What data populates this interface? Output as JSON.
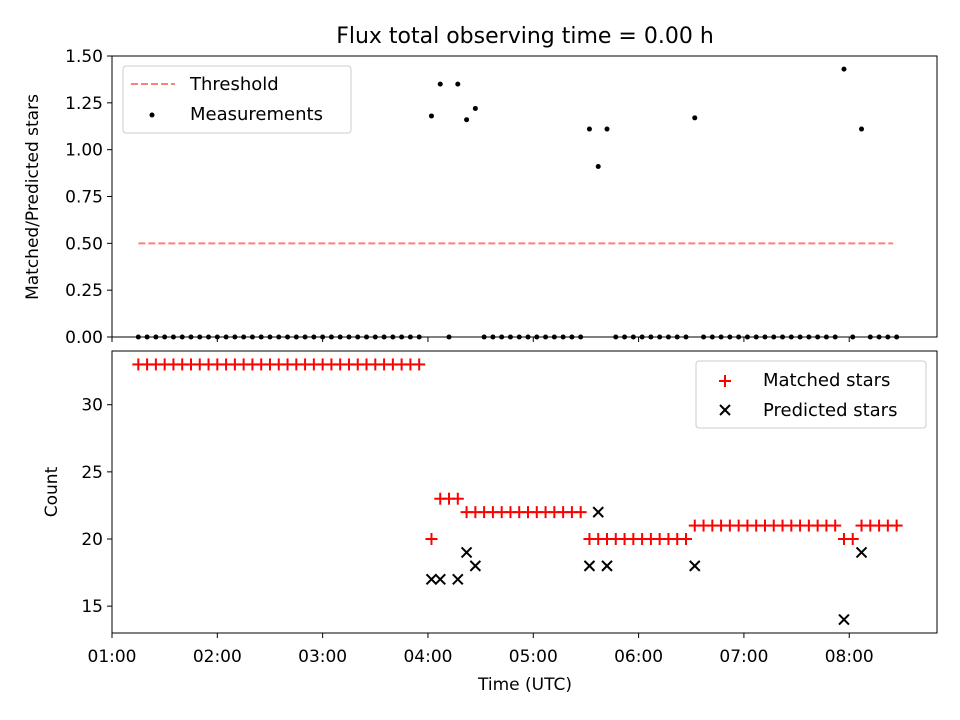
{
  "title": "Flux total observing time = 0.00 h",
  "xlabel": "Time (UTC)",
  "top_ylabel": "Matched/Predicted stars",
  "bottom_ylabel": "Count",
  "colors": {
    "threshold": "#ff7f7f",
    "measurement": "#000000",
    "matched": "#ff0000",
    "predicted": "#000000"
  },
  "chart_data": [
    {
      "type": "scatter",
      "title": "Flux total observing time = 0.00 h",
      "ylabel": "Matched/Predicted stars",
      "xlim": [
        "01:00",
        "08:50"
      ],
      "ylim": [
        0,
        1.5
      ],
      "x_ticks": [
        "01:00",
        "02:00",
        "03:00",
        "04:00",
        "05:00",
        "06:00",
        "07:00",
        "08:00"
      ],
      "y_ticks": [
        "0.00",
        "0.25",
        "0.50",
        "0.75",
        "1.00",
        "1.25",
        "1.50"
      ],
      "legend_position": "top-left",
      "threshold": {
        "name": "Threshold",
        "y": 0.5,
        "x_range": [
          "01:15",
          "08:25"
        ]
      },
      "series": [
        {
          "name": "Measurements",
          "points": [
            [
              "01:15",
              0
            ],
            [
              "01:20",
              0
            ],
            [
              "01:25",
              0
            ],
            [
              "01:30",
              0
            ],
            [
              "01:35",
              0
            ],
            [
              "01:40",
              0
            ],
            [
              "01:45",
              0
            ],
            [
              "01:50",
              0
            ],
            [
              "01:55",
              0
            ],
            [
              "02:00",
              0
            ],
            [
              "02:05",
              0
            ],
            [
              "02:10",
              0
            ],
            [
              "02:15",
              0
            ],
            [
              "02:20",
              0
            ],
            [
              "02:25",
              0
            ],
            [
              "02:30",
              0
            ],
            [
              "02:35",
              0
            ],
            [
              "02:40",
              0
            ],
            [
              "02:45",
              0
            ],
            [
              "02:50",
              0
            ],
            [
              "02:55",
              0
            ],
            [
              "03:00",
              0
            ],
            [
              "03:05",
              0
            ],
            [
              "03:10",
              0
            ],
            [
              "03:15",
              0
            ],
            [
              "03:20",
              0
            ],
            [
              "03:25",
              0
            ],
            [
              "03:30",
              0
            ],
            [
              "03:35",
              0
            ],
            [
              "03:40",
              0
            ],
            [
              "03:45",
              0
            ],
            [
              "03:50",
              0
            ],
            [
              "03:55",
              0
            ],
            [
              "04:02",
              1.18
            ],
            [
              "04:07",
              1.35
            ],
            [
              "04:12",
              0
            ],
            [
              "04:17",
              1.35
            ],
            [
              "04:22",
              1.16
            ],
            [
              "04:27",
              1.22
            ],
            [
              "04:32",
              0
            ],
            [
              "04:37",
              0
            ],
            [
              "04:42",
              0
            ],
            [
              "04:47",
              0
            ],
            [
              "04:52",
              0
            ],
            [
              "04:57",
              0
            ],
            [
              "05:02",
              0
            ],
            [
              "05:07",
              0
            ],
            [
              "05:12",
              0
            ],
            [
              "05:17",
              0
            ],
            [
              "05:22",
              0
            ],
            [
              "05:27",
              0
            ],
            [
              "05:32",
              1.11
            ],
            [
              "05:37",
              0.91
            ],
            [
              "05:42",
              1.11
            ],
            [
              "05:47",
              0
            ],
            [
              "05:52",
              0
            ],
            [
              "05:57",
              0
            ],
            [
              "06:02",
              0
            ],
            [
              "06:07",
              0
            ],
            [
              "06:12",
              0
            ],
            [
              "06:17",
              0
            ],
            [
              "06:22",
              0
            ],
            [
              "06:27",
              0
            ],
            [
              "06:32",
              1.17
            ],
            [
              "06:37",
              0
            ],
            [
              "06:42",
              0
            ],
            [
              "06:47",
              0
            ],
            [
              "06:52",
              0
            ],
            [
              "06:57",
              0
            ],
            [
              "07:02",
              0
            ],
            [
              "07:07",
              0
            ],
            [
              "07:12",
              0
            ],
            [
              "07:17",
              0
            ],
            [
              "07:22",
              0
            ],
            [
              "07:27",
              0
            ],
            [
              "07:32",
              0
            ],
            [
              "07:37",
              0
            ],
            [
              "07:42",
              0
            ],
            [
              "07:47",
              0
            ],
            [
              "07:52",
              0
            ],
            [
              "07:57",
              1.43
            ],
            [
              "08:02",
              0
            ],
            [
              "08:07",
              1.11
            ],
            [
              "08:12",
              0
            ],
            [
              "08:17",
              0
            ],
            [
              "08:22",
              0
            ],
            [
              "08:27",
              0
            ]
          ]
        }
      ]
    },
    {
      "type": "scatter",
      "xlabel": "Time (UTC)",
      "ylabel": "Count",
      "xlim": [
        "01:00",
        "08:50"
      ],
      "ylim": [
        13,
        34
      ],
      "x_ticks": [
        "01:00",
        "02:00",
        "03:00",
        "04:00",
        "05:00",
        "06:00",
        "07:00",
        "08:00"
      ],
      "y_ticks": [
        "15",
        "20",
        "25",
        "30"
      ],
      "legend_position": "top-right",
      "series": [
        {
          "name": "Matched stars",
          "marker": "plus",
          "points": [
            [
              "01:15",
              33
            ],
            [
              "01:20",
              33
            ],
            [
              "01:25",
              33
            ],
            [
              "01:30",
              33
            ],
            [
              "01:35",
              33
            ],
            [
              "01:40",
              33
            ],
            [
              "01:45",
              33
            ],
            [
              "01:50",
              33
            ],
            [
              "01:55",
              33
            ],
            [
              "02:00",
              33
            ],
            [
              "02:05",
              33
            ],
            [
              "02:10",
              33
            ],
            [
              "02:15",
              33
            ],
            [
              "02:20",
              33
            ],
            [
              "02:25",
              33
            ],
            [
              "02:30",
              33
            ],
            [
              "02:35",
              33
            ],
            [
              "02:40",
              33
            ],
            [
              "02:45",
              33
            ],
            [
              "02:50",
              33
            ],
            [
              "02:55",
              33
            ],
            [
              "03:00",
              33
            ],
            [
              "03:05",
              33
            ],
            [
              "03:10",
              33
            ],
            [
              "03:15",
              33
            ],
            [
              "03:20",
              33
            ],
            [
              "03:25",
              33
            ],
            [
              "03:30",
              33
            ],
            [
              "03:35",
              33
            ],
            [
              "03:40",
              33
            ],
            [
              "03:45",
              33
            ],
            [
              "03:50",
              33
            ],
            [
              "03:55",
              33
            ],
            [
              "04:02",
              20
            ],
            [
              "04:07",
              23
            ],
            [
              "04:12",
              23
            ],
            [
              "04:17",
              23
            ],
            [
              "04:22",
              22
            ],
            [
              "04:27",
              22
            ],
            [
              "04:32",
              22
            ],
            [
              "04:37",
              22
            ],
            [
              "04:42",
              22
            ],
            [
              "04:47",
              22
            ],
            [
              "04:52",
              22
            ],
            [
              "04:57",
              22
            ],
            [
              "05:02",
              22
            ],
            [
              "05:07",
              22
            ],
            [
              "05:12",
              22
            ],
            [
              "05:17",
              22
            ],
            [
              "05:22",
              22
            ],
            [
              "05:27",
              22
            ],
            [
              "05:32",
              20
            ],
            [
              "05:37",
              20
            ],
            [
              "05:42",
              20
            ],
            [
              "05:47",
              20
            ],
            [
              "05:52",
              20
            ],
            [
              "05:57",
              20
            ],
            [
              "06:02",
              20
            ],
            [
              "06:07",
              20
            ],
            [
              "06:12",
              20
            ],
            [
              "06:17",
              20
            ],
            [
              "06:22",
              20
            ],
            [
              "06:27",
              20
            ],
            [
              "06:32",
              21
            ],
            [
              "06:37",
              21
            ],
            [
              "06:42",
              21
            ],
            [
              "06:47",
              21
            ],
            [
              "06:52",
              21
            ],
            [
              "06:57",
              21
            ],
            [
              "07:02",
              21
            ],
            [
              "07:07",
              21
            ],
            [
              "07:12",
              21
            ],
            [
              "07:17",
              21
            ],
            [
              "07:22",
              21
            ],
            [
              "07:27",
              21
            ],
            [
              "07:32",
              21
            ],
            [
              "07:37",
              21
            ],
            [
              "07:42",
              21
            ],
            [
              "07:47",
              21
            ],
            [
              "07:52",
              21
            ],
            [
              "07:57",
              20
            ],
            [
              "08:02",
              20
            ],
            [
              "08:07",
              21
            ],
            [
              "08:12",
              21
            ],
            [
              "08:17",
              21
            ],
            [
              "08:22",
              21
            ],
            [
              "08:27",
              21
            ]
          ]
        },
        {
          "name": "Predicted stars",
          "marker": "x",
          "points": [
            [
              "04:02",
              17
            ],
            [
              "04:07",
              17
            ],
            [
              "04:17",
              17
            ],
            [
              "04:22",
              19
            ],
            [
              "04:27",
              18
            ],
            [
              "05:32",
              18
            ],
            [
              "05:37",
              22
            ],
            [
              "05:42",
              18
            ],
            [
              "06:32",
              18
            ],
            [
              "07:57",
              14
            ],
            [
              "08:07",
              19
            ]
          ]
        }
      ]
    }
  ]
}
